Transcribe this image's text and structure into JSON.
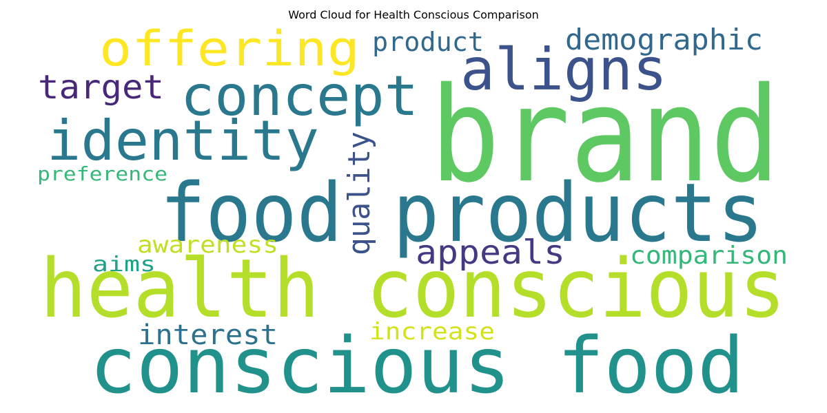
{
  "title": "Word Cloud for Health Conscious Comparison",
  "words": [
    {
      "text": "brand",
      "color": "#5ec962"
    },
    {
      "text": "health conscious",
      "color": "#b5de2b"
    },
    {
      "text": "conscious food",
      "color": "#21918c"
    },
    {
      "text": "products",
      "color": "#2a788e"
    },
    {
      "text": "food",
      "color": "#2a788e"
    },
    {
      "text": "identity",
      "color": "#2a788e"
    },
    {
      "text": "concept",
      "color": "#2a788e"
    },
    {
      "text": "aligns",
      "color": "#3b528b"
    },
    {
      "text": "offering",
      "color": "#fde725"
    },
    {
      "text": "target",
      "color": "#482878"
    },
    {
      "text": "demographic",
      "color": "#31688e"
    },
    {
      "text": "product",
      "color": "#31688e"
    },
    {
      "text": "quality",
      "color": "#3b528b"
    },
    {
      "text": "appeals",
      "color": "#443983"
    },
    {
      "text": "comparison",
      "color": "#35b779"
    },
    {
      "text": "awareness",
      "color": "#c2df23"
    },
    {
      "text": "preference",
      "color": "#35b779"
    },
    {
      "text": "aims",
      "color": "#1fa187"
    },
    {
      "text": "interest",
      "color": "#2c728e"
    },
    {
      "text": "increase",
      "color": "#d2e21b"
    }
  ]
}
